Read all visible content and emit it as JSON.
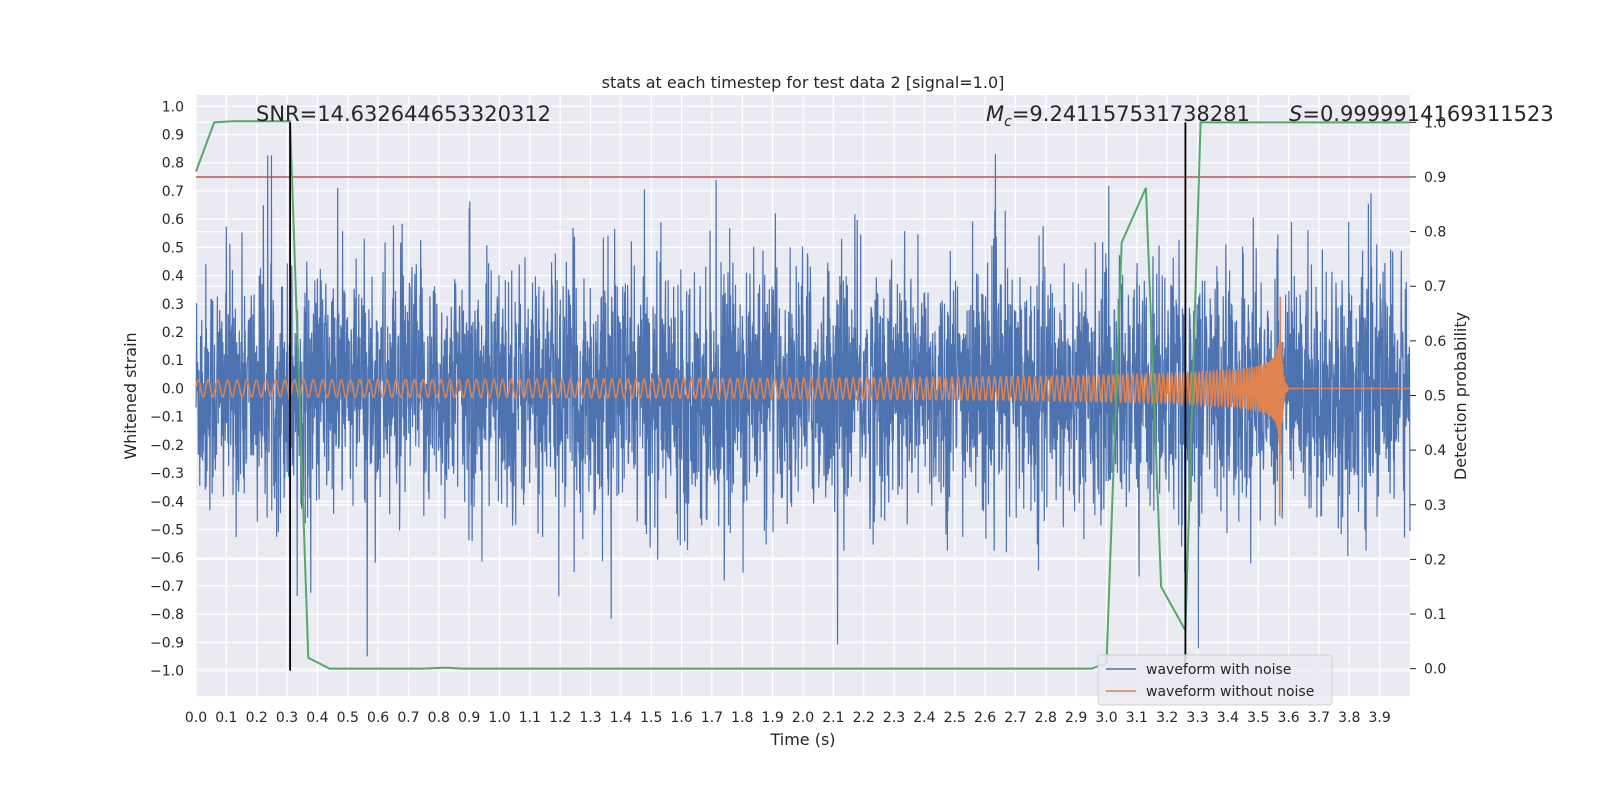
{
  "chart_data": {
    "type": "line",
    "title": "stats at each timestep for test data 2 [signal=1.0]",
    "xlabel": "Time (s)",
    "ylabel": "Whitened strain",
    "y2label": "Detection probability",
    "xlim": [
      0.0,
      4.0
    ],
    "ylim": [
      -1.09,
      1.04
    ],
    "y2lim": [
      -0.05,
      1.05
    ],
    "x_ticks": [
      "0.0",
      "0.1",
      "0.2",
      "0.3",
      "0.4",
      "0.5",
      "0.6",
      "0.7",
      "0.8",
      "0.9",
      "1.0",
      "1.1",
      "1.2",
      "1.3",
      "1.4",
      "1.5",
      "1.6",
      "1.7",
      "1.8",
      "1.9",
      "2.0",
      "2.1",
      "2.2",
      "2.3",
      "2.4",
      "2.5",
      "2.6",
      "2.7",
      "2.8",
      "2.9",
      "3.0",
      "3.1",
      "3.2",
      "3.3",
      "3.4",
      "3.5",
      "3.6",
      "3.7",
      "3.8",
      "3.9"
    ],
    "y_ticks": [
      "1.0",
      "0.9",
      "0.8",
      "0.7",
      "0.6",
      "0.5",
      "0.4",
      "0.3",
      "0.2",
      "0.1",
      "0.0",
      "−0.1",
      "−0.2",
      "−0.3",
      "−0.4",
      "−0.5",
      "−0.6",
      "−0.7",
      "−0.8",
      "−0.9",
      "−1.0"
    ],
    "y2_ticks": [
      "1.0",
      "0.9",
      "0.8",
      "0.7",
      "0.6",
      "0.5",
      "0.4",
      "0.3",
      "0.2",
      "0.1",
      "0.0"
    ],
    "grid": true,
    "legend_position": "bottom-right",
    "series": [
      {
        "name": "waveform with noise",
        "color": "#4c72b0",
        "axis": "left",
        "kind": "noise",
        "typical_amplitude": 0.35,
        "peak_amplitude": 0.95
      },
      {
        "name": "waveform without noise",
        "color": "#dd8452",
        "axis": "left",
        "kind": "chirp",
        "initial_amplitude": 0.03,
        "peak_amplitude": 0.52,
        "merger_time": 3.57,
        "end_time": 3.6
      }
    ],
    "detection_probability": {
      "color": "#55a868",
      "axis": "right",
      "x": [
        0.0,
        0.06,
        0.12,
        0.31,
        0.37,
        0.44,
        0.75,
        0.82,
        0.88,
        2.95,
        3.0,
        3.05,
        3.13,
        3.18,
        3.26,
        3.31,
        4.0
      ],
      "y": [
        0.91,
        1.0,
        1.002,
        1.002,
        0.02,
        0.0,
        0.0,
        0.002,
        0.0,
        0.0,
        0.01,
        0.78,
        0.88,
        0.15,
        0.07,
        1.0,
        1.0
      ]
    },
    "threshold": {
      "y2": 0.9,
      "color": "#c44e52"
    },
    "vertical_markers": {
      "x": [
        0.31,
        3.26
      ],
      "color": "#000000",
      "ymin": -1.0,
      "y2max": 1.0
    },
    "annotations": {
      "snr": "SNR=14.632644653320312",
      "mc_symbol": "M",
      "mc_subscript": "c",
      "mc_value": "=9.241157531738281",
      "s_symbol": "S",
      "s_value": "=0.9999914169311523"
    }
  }
}
